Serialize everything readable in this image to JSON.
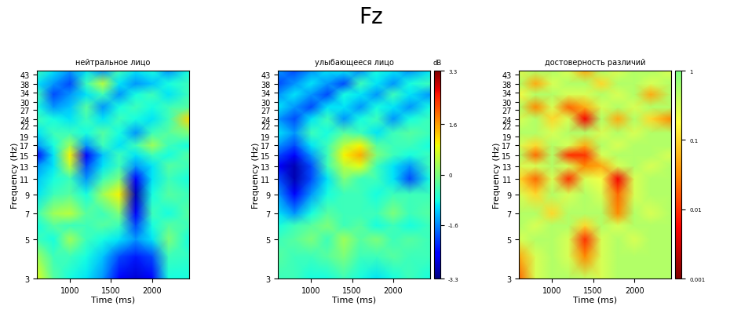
{
  "title": "Fz",
  "chart_data": [
    {
      "type": "heatmap",
      "title": "нейтральное лицо",
      "x_label": "Time (ms)",
      "y_label": "Frequency (Hz)",
      "log": "y",
      "x": [
        600,
        800,
        1000,
        1200,
        1400,
        1600,
        1800,
        2000,
        2200,
        2450
      ],
      "y": [
        3,
        4,
        5,
        6,
        7,
        9,
        11,
        13,
        15,
        17,
        20,
        24,
        28,
        33,
        38,
        45
      ],
      "xlim": [
        600,
        2450
      ],
      "xticks": [
        1000,
        1500,
        2000
      ],
      "ylim": [
        3,
        45
      ],
      "yticks": [
        3,
        5,
        7,
        9,
        11,
        13,
        15,
        17,
        19,
        22,
        24,
        27,
        30,
        34,
        38,
        43
      ],
      "colorbar_lim": [
        -3.3,
        3.3
      ],
      "cells": [
        [
          0.8,
          -0.3,
          -0.8,
          -1.0,
          -1.5,
          -2.5,
          -2.8,
          -2.5,
          -0.8,
          -0.8
        ],
        [
          0.3,
          -0.5,
          -0.5,
          -0.8,
          -1.2,
          -2.0,
          -2.3,
          -2.0,
          -0.5,
          -0.6
        ],
        [
          -0.5,
          -0.8,
          0.3,
          -0.5,
          -0.8,
          -1.0,
          -1.5,
          -1.0,
          0.0,
          -0.8
        ],
        [
          -0.8,
          -0.3,
          -0.5,
          -0.5,
          -0.3,
          -0.5,
          -2.0,
          -0.8,
          -0.3,
          -0.5
        ],
        [
          -0.5,
          0.3,
          0.5,
          -0.3,
          -0.5,
          0.0,
          -2.5,
          -0.5,
          -0.8,
          -0.3
        ],
        [
          -1.0,
          -0.5,
          -0.3,
          -0.8,
          0.3,
          1.0,
          -3.0,
          -0.8,
          -0.3,
          -0.5
        ],
        [
          -1.2,
          -0.8,
          -0.5,
          -1.5,
          -0.5,
          0.0,
          -2.5,
          -1.0,
          -0.5,
          -0.8
        ],
        [
          -1.5,
          -1.0,
          0.5,
          -2.0,
          -1.0,
          -0.5,
          -1.5,
          -1.0,
          -0.3,
          -0.5
        ],
        [
          -2.5,
          -1.0,
          1.0,
          -2.5,
          -1.2,
          -0.5,
          -1.0,
          -0.5,
          -0.8,
          -0.3
        ],
        [
          -1.5,
          -0.8,
          0.3,
          -1.5,
          -0.5,
          -1.0,
          -0.5,
          0.3,
          -0.5,
          -0.8
        ],
        [
          -1.0,
          -0.5,
          -0.5,
          -0.8,
          -0.3,
          -0.8,
          -1.5,
          -0.5,
          -0.3,
          0.0
        ],
        [
          -0.5,
          -0.8,
          -1.0,
          -0.5,
          -1.0,
          -0.5,
          -0.8,
          -1.0,
          -0.5,
          1.2
        ],
        [
          -0.8,
          -1.5,
          -1.2,
          -0.3,
          -1.5,
          -0.8,
          -0.5,
          -0.8,
          -0.5,
          -0.3
        ],
        [
          -0.5,
          -2.0,
          -1.5,
          -1.0,
          -0.5,
          -1.5,
          -0.8,
          -0.5,
          -1.0,
          -0.5
        ],
        [
          -1.0,
          -1.5,
          -2.0,
          -0.5,
          0.5,
          -1.0,
          -1.5,
          -1.2,
          -0.8,
          -0.5
        ],
        [
          -0.5,
          -1.0,
          -1.5,
          -1.0,
          -1.5,
          -0.5,
          -1.0,
          -0.8,
          -1.5,
          -0.8
        ]
      ]
    },
    {
      "type": "heatmap",
      "title": "улыбающееся лицо",
      "x_label": "Time (ms)",
      "y_label": "Frequency (Hz)",
      "log": "y",
      "x": [
        600,
        800,
        1000,
        1200,
        1400,
        1600,
        1800,
        2000,
        2200,
        2450
      ],
      "y": [
        3,
        4,
        5,
        6,
        7,
        9,
        11,
        13,
        15,
        17,
        20,
        24,
        28,
        33,
        38,
        45
      ],
      "xlim": [
        600,
        2450
      ],
      "xticks": [
        1000,
        1500,
        2000
      ],
      "ylim": [
        3,
        45
      ],
      "yticks": [
        3,
        5,
        7,
        9,
        11,
        13,
        15,
        17,
        19,
        22,
        24,
        27,
        30,
        34,
        38,
        43
      ],
      "colorbar_lim": [
        -3.3,
        3.3
      ],
      "colorbar_ticks": [
        -3.3,
        -1.6,
        0,
        1.6,
        3.3
      ],
      "colorbar_label": "dB",
      "cells": [
        [
          -0.5,
          -0.5,
          -0.8,
          -0.8,
          -0.5,
          -0.8,
          -1.0,
          -0.8,
          -0.5,
          -0.8
        ],
        [
          -0.3,
          -0.5,
          -0.5,
          -0.3,
          0.0,
          -0.5,
          -0.5,
          -0.3,
          -0.5,
          -0.5
        ],
        [
          -0.5,
          -0.3,
          0.0,
          -0.5,
          0.3,
          -0.3,
          0.0,
          -0.5,
          -0.3,
          -0.5
        ],
        [
          -0.8,
          -0.5,
          -0.3,
          0.0,
          -0.5,
          -0.3,
          -0.8,
          -0.5,
          -0.8,
          -0.5
        ],
        [
          -1.0,
          -1.5,
          -0.8,
          -0.3,
          -0.5,
          -0.5,
          -0.5,
          0.0,
          -0.5,
          -0.3
        ],
        [
          -1.5,
          -2.5,
          -1.5,
          -0.8,
          -0.5,
          -0.5,
          -0.8,
          -0.5,
          -0.5,
          -0.5
        ],
        [
          -2.0,
          -3.0,
          -2.0,
          -1.0,
          0.0,
          -0.5,
          -0.5,
          -1.0,
          -2.0,
          -0.8
        ],
        [
          -2.5,
          -3.0,
          -2.0,
          -0.5,
          0.5,
          0.8,
          -0.5,
          -1.0,
          -1.5,
          -0.5
        ],
        [
          -2.0,
          -2.5,
          -1.5,
          -0.5,
          1.0,
          1.5,
          0.0,
          -0.5,
          -0.8,
          -0.5
        ],
        [
          -1.5,
          -2.0,
          -1.0,
          -0.5,
          0.5,
          1.0,
          -0.3,
          -0.5,
          -0.5,
          -0.8
        ],
        [
          -1.0,
          -1.5,
          -0.5,
          -0.8,
          -0.3,
          -0.5,
          -1.0,
          -0.5,
          -0.3,
          -0.5
        ],
        [
          -1.5,
          -2.0,
          -1.0,
          -0.5,
          -1.5,
          -0.8,
          -0.5,
          -1.5,
          -0.8,
          -0.5
        ],
        [
          -1.0,
          -1.5,
          -2.0,
          -1.0,
          -1.0,
          -1.5,
          -0.8,
          -1.0,
          -1.5,
          -0.8
        ],
        [
          -1.5,
          -1.0,
          -1.5,
          -2.0,
          -0.8,
          -1.0,
          -1.5,
          -0.5,
          -1.0,
          -1.5
        ],
        [
          -2.0,
          -1.5,
          -1.0,
          -1.5,
          -2.0,
          -0.5,
          -1.0,
          -1.5,
          -0.8,
          -0.5
        ],
        [
          -1.5,
          -2.0,
          -1.5,
          -1.0,
          -1.0,
          -1.5,
          -0.8,
          -1.0,
          -1.5,
          -1.0
        ]
      ]
    },
    {
      "type": "heatmap",
      "title": "достоверность различий",
      "x_label": "Time (ms)",
      "y_label": "Frequency (Hz)",
      "log": "y",
      "x": [
        600,
        800,
        1000,
        1200,
        1400,
        1600,
        1800,
        2000,
        2200,
        2450
      ],
      "y": [
        3,
        4,
        5,
        6,
        7,
        9,
        11,
        13,
        15,
        17,
        20,
        24,
        28,
        33,
        38,
        45
      ],
      "xlim": [
        600,
        2450
      ],
      "xticks": [
        1000,
        1500,
        2000
      ],
      "ylim": [
        3,
        45
      ],
      "yticks": [
        3,
        5,
        7,
        9,
        11,
        13,
        15,
        17,
        19,
        22,
        24,
        27,
        30,
        34,
        38,
        43
      ],
      "colorbar_lim": [
        0.001,
        1
      ],
      "colorbar_ticks": [
        0.001,
        0.01,
        0.1,
        1
      ],
      "colorbar_log": true,
      "cells": [
        [
          0.02,
          0.3,
          0.5,
          0.5,
          0.4,
          0.3,
          0.5,
          0.5,
          0.5,
          0.5
        ],
        [
          0.05,
          0.3,
          0.5,
          0.3,
          0.03,
          0.3,
          0.5,
          0.5,
          0.5,
          0.5
        ],
        [
          0.3,
          0.5,
          0.5,
          0.3,
          0.01,
          0.3,
          0.5,
          0.3,
          0.5,
          0.5
        ],
        [
          0.5,
          0.3,
          0.5,
          0.5,
          0.1,
          0.5,
          0.3,
          0.5,
          0.5,
          0.5
        ],
        [
          0.5,
          0.5,
          0.1,
          0.5,
          0.5,
          0.5,
          0.03,
          0.5,
          0.3,
          0.5
        ],
        [
          0.3,
          0.1,
          0.5,
          0.3,
          0.5,
          0.3,
          0.02,
          0.3,
          0.5,
          0.5
        ],
        [
          0.1,
          0.02,
          0.3,
          0.01,
          0.3,
          0.2,
          0.005,
          0.3,
          0.5,
          0.5
        ],
        [
          0.3,
          0.3,
          0.5,
          0.3,
          0.03,
          0.05,
          0.3,
          0.5,
          0.3,
          0.5
        ],
        [
          0.5,
          0.02,
          0.5,
          0.01,
          0.01,
          0.3,
          0.5,
          0.5,
          0.5,
          0.3
        ],
        [
          0.3,
          0.1,
          0.5,
          0.3,
          0.05,
          0.5,
          0.3,
          0.5,
          0.5,
          0.5
        ],
        [
          0.5,
          0.5,
          0.3,
          0.5,
          0.5,
          0.3,
          0.5,
          0.3,
          0.5,
          0.5
        ],
        [
          0.3,
          0.5,
          0.1,
          0.3,
          0.005,
          0.5,
          0.05,
          0.5,
          0.1,
          0.03
        ],
        [
          0.5,
          0.03,
          0.3,
          0.02,
          0.05,
          0.3,
          0.5,
          0.3,
          0.5,
          0.5
        ],
        [
          0.2,
          0.5,
          0.5,
          0.3,
          0.3,
          0.5,
          0.3,
          0.5,
          0.05,
          0.5
        ],
        [
          0.5,
          0.05,
          0.3,
          0.5,
          0.5,
          0.1,
          0.5,
          0.5,
          0.3,
          0.5
        ],
        [
          0.3,
          0.5,
          0.5,
          0.3,
          0.05,
          0.5,
          0.3,
          0.5,
          0.5,
          0.3
        ]
      ]
    }
  ]
}
